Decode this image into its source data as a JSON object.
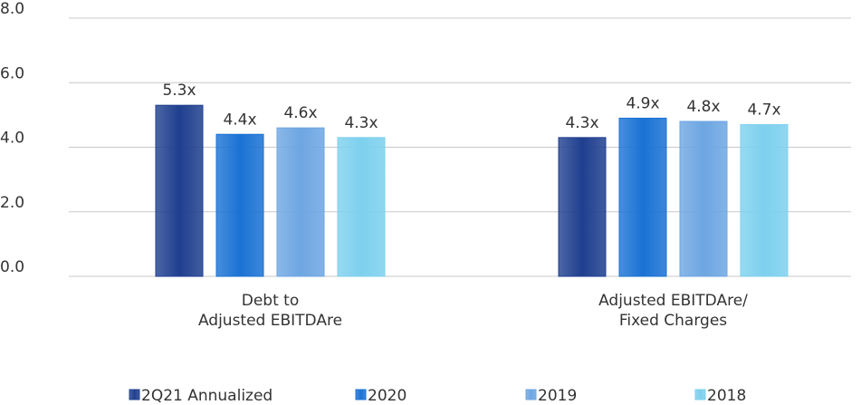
{
  "chart_data": {
    "type": "bar",
    "categories": [
      "Debt to\nAdjusted EBITDAre",
      "Adjusted EBITDAre/\nFixed Charges"
    ],
    "series": [
      {
        "name": "2Q21 Annualized",
        "color": "#1f3f8f",
        "values": [
          5.3,
          4.3
        ],
        "value_labels": [
          "5.3x",
          "4.3x"
        ]
      },
      {
        "name": "2020",
        "color": "#1a72d4",
        "values": [
          4.4,
          4.9
        ],
        "value_labels": [
          "4.4x",
          "4.9x"
        ]
      },
      {
        "name": "2019",
        "color": "#6da6e2",
        "values": [
          4.6,
          4.8
        ],
        "value_labels": [
          "4.6x",
          "4.8x"
        ]
      },
      {
        "name": "2018",
        "color": "#7dd0ee",
        "values": [
          4.3,
          4.7
        ],
        "value_labels": [
          "4.3x",
          "4.7x"
        ]
      }
    ],
    "ylim": [
      0,
      8
    ],
    "yticks": [
      {
        "value": 0,
        "label": "0.0"
      },
      {
        "value": 2,
        "label": "2.0"
      },
      {
        "value": 4,
        "label": "4.0"
      },
      {
        "value": 6,
        "label": "6.0"
      },
      {
        "value": 8,
        "label": "8.0"
      }
    ],
    "grid": true,
    "legend": "bottom"
  }
}
